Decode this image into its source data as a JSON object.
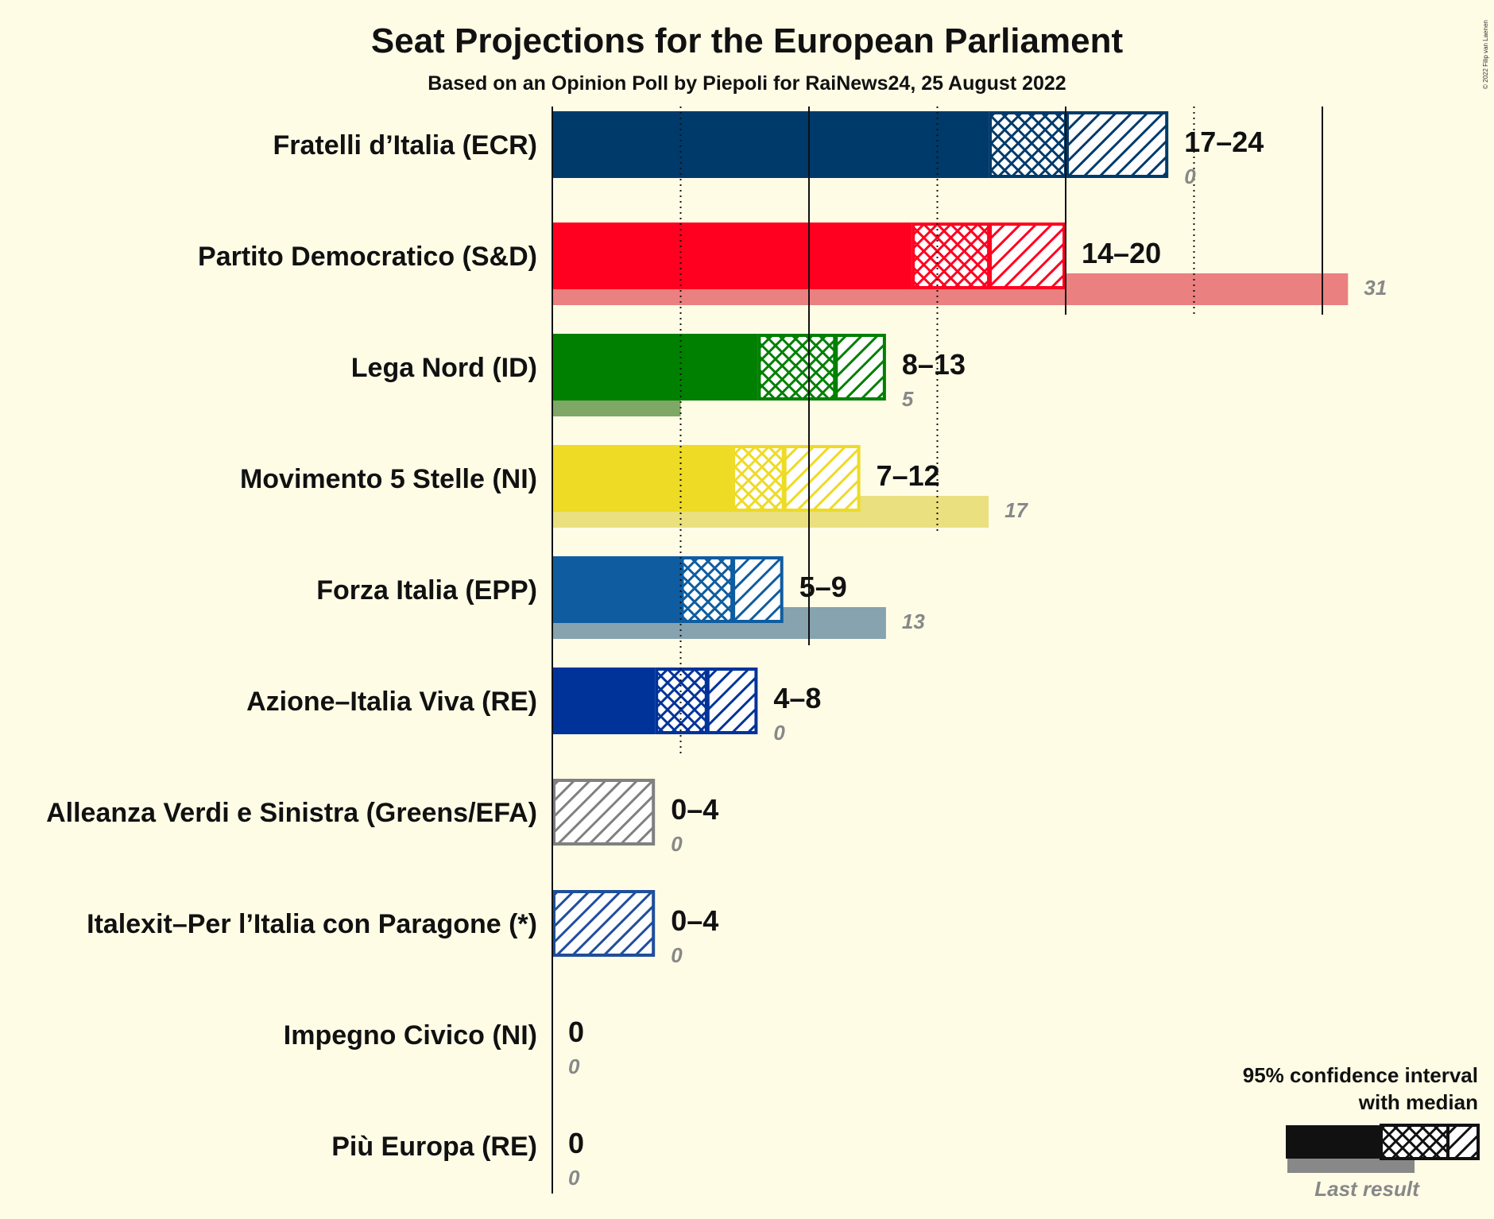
{
  "title": "Seat Projections for the European Parliament",
  "subtitle": "Based on an Opinion Poll by Piepoli for RaiNews24, 25 August 2022",
  "copyright": "© 2022 Filip van Laenen",
  "legend": {
    "line1": "95% confidence interval",
    "line2": "with median",
    "last_result": "Last result"
  },
  "chart_data": {
    "type": "bar",
    "orientation": "horizontal",
    "title": "Seat Projections for the European Parliament",
    "subtitle": "Based on an Opinion Poll by Piepoli for RaiNews24, 25 August 2022",
    "xlim": [
      0,
      31
    ],
    "gridlines_solid": [
      10,
      20,
      30
    ],
    "gridlines_dotted": [
      5,
      15,
      25
    ],
    "categories": [
      "Fratelli d’Italia (ECR)",
      "Partito Democratico (S&D)",
      "Lega Nord (ID)",
      "Movimento 5 Stelle (NI)",
      "Forza Italia (EPP)",
      "Azione–Italia Viva (RE)",
      "Alleanza Verdi e Sinistra (Greens/EFA)",
      "Italexit–Per l’Italia con Paragone (*)",
      "Impegno Civico (NI)",
      "Più Europa (RE)"
    ],
    "series": [
      {
        "party": "Fratelli d’Italia (ECR)",
        "low": 17,
        "median": 20,
        "high": 24,
        "range_label": "17–24",
        "last": 0,
        "last_label": "0",
        "color": "#003A6A",
        "last_color": "#003A6A"
      },
      {
        "party": "Partito Democratico (S&D)",
        "low": 14,
        "median": 17,
        "high": 20,
        "range_label": "14–20",
        "last": 31,
        "last_label": "31",
        "color": "#FF0020",
        "last_color": "#EA8080"
      },
      {
        "party": "Lega Nord (ID)",
        "low": 8,
        "median": 11,
        "high": 13,
        "range_label": "8–13",
        "last": 5,
        "last_label": "5",
        "color": "#008000",
        "last_color": "#7FA866"
      },
      {
        "party": "Movimento 5 Stelle (NI)",
        "low": 7,
        "median": 9,
        "high": 12,
        "range_label": "7–12",
        "last": 17,
        "last_label": "17",
        "color": "#EDDB26",
        "last_color": "#EAE07F"
      },
      {
        "party": "Forza Italia (EPP)",
        "low": 5,
        "median": 7,
        "high": 9,
        "range_label": "5–9",
        "last": 13,
        "last_label": "13",
        "color": "#0F5DA0",
        "last_color": "#86A3AF"
      },
      {
        "party": "Azione–Italia Viva (RE)",
        "low": 4,
        "median": 6,
        "high": 8,
        "range_label": "4–8",
        "last": 0,
        "last_label": "0",
        "color": "#003399",
        "last_color": "#7F99CC"
      },
      {
        "party": "Alleanza Verdi e Sinistra (Greens/EFA)",
        "low": 0,
        "median": 0,
        "high": 4,
        "range_label": "0–4",
        "last": 0,
        "last_label": "0",
        "color": "#808080",
        "last_color": "#BFBFBF"
      },
      {
        "party": "Italexit–Per l’Italia con Paragone (*)",
        "low": 0,
        "median": 0,
        "high": 4,
        "range_label": "0–4",
        "last": 0,
        "last_label": "0",
        "color": "#1F4E9C",
        "last_color": "#8FA6CD"
      },
      {
        "party": "Impegno Civico (NI)",
        "low": 0,
        "median": 0,
        "high": 0,
        "range_label": "0",
        "last": 0,
        "last_label": "0",
        "color": "#333333",
        "last_color": "#999999"
      },
      {
        "party": "Più Europa (RE)",
        "low": 0,
        "median": 0,
        "high": 0,
        "range_label": "0",
        "last": 0,
        "last_label": "0",
        "color": "#333333",
        "last_color": "#999999"
      }
    ]
  }
}
